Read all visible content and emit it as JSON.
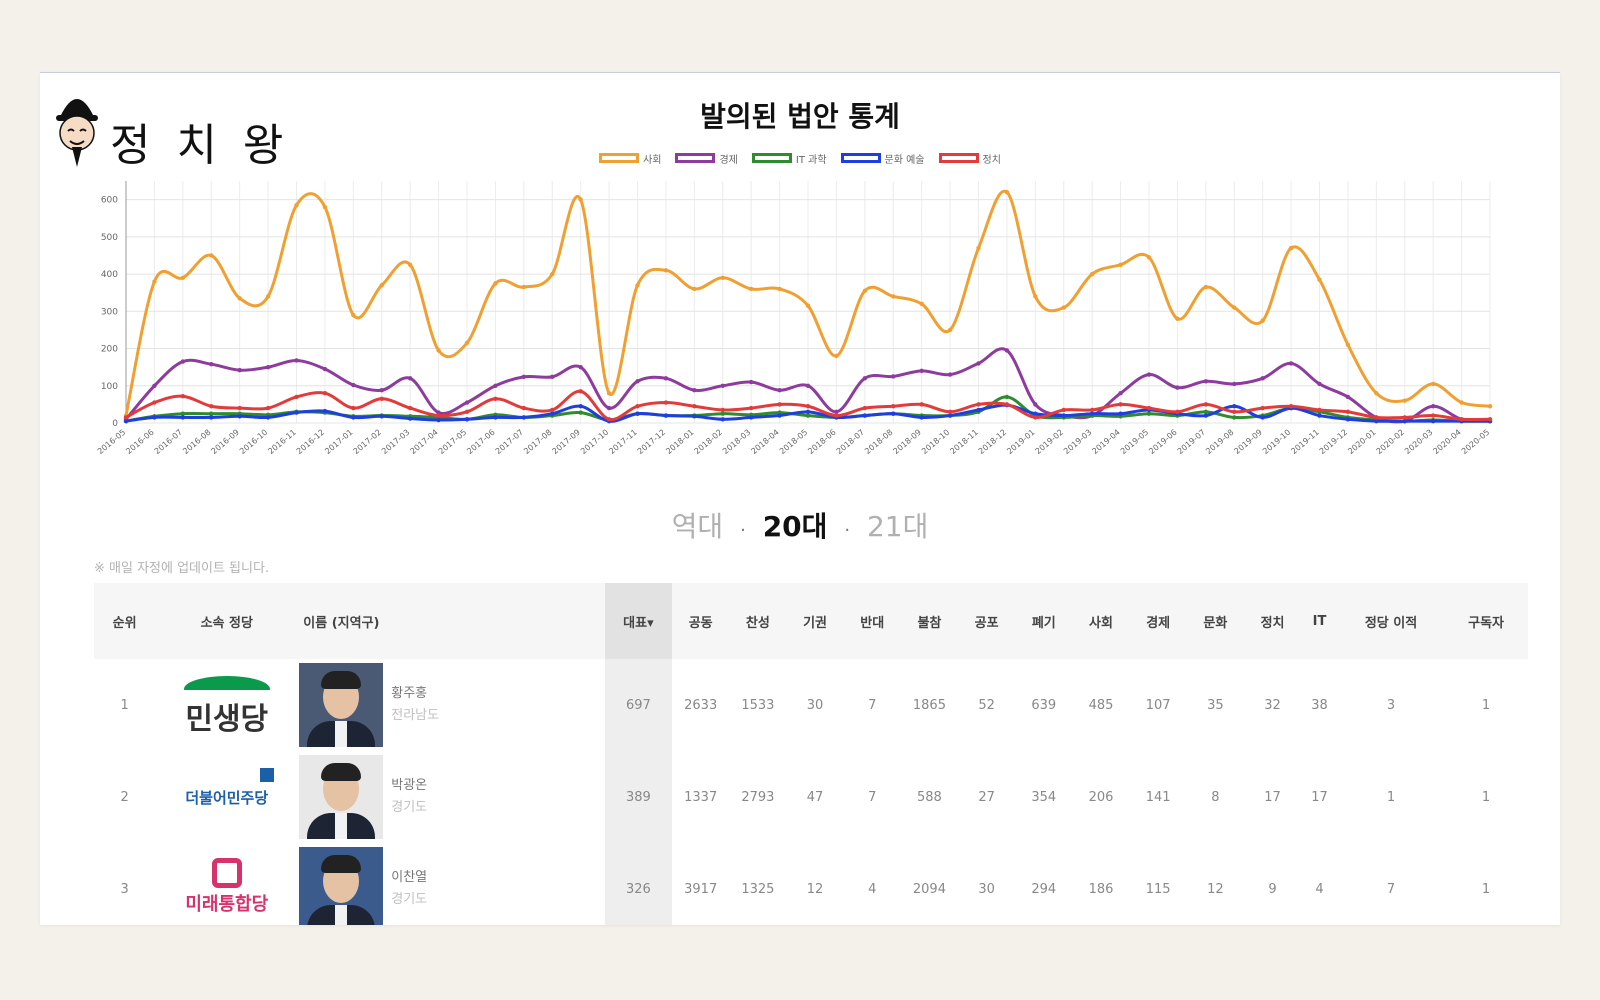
{
  "brand": {
    "logo_text": "정 치 왕"
  },
  "chart_data": {
    "type": "line",
    "title": "발의된 법안 통계",
    "x": [
      "2016-05",
      "2016-06",
      "2016-07",
      "2016-08",
      "2016-09",
      "2016-10",
      "2016-11",
      "2016-12",
      "2017-01",
      "2017-02",
      "2017-03",
      "2017-04",
      "2017-05",
      "2017-06",
      "2017-07",
      "2017-08",
      "2017-09",
      "2017-10",
      "2017-11",
      "2017-12",
      "2018-01",
      "2018-02",
      "2018-03",
      "2018-04",
      "2018-05",
      "2018-06",
      "2018-07",
      "2018-08",
      "2018-09",
      "2018-10",
      "2018-11",
      "2018-12",
      "2019-01",
      "2019-02",
      "2019-03",
      "2019-04",
      "2019-05",
      "2019-06",
      "2019-07",
      "2019-08",
      "2019-09",
      "2019-10",
      "2019-11",
      "2019-12",
      "2020-01",
      "2020-02",
      "2020-03",
      "2020-04",
      "2020-05"
    ],
    "ylim": [
      0,
      650
    ],
    "yticks": [
      0,
      100,
      200,
      300,
      400,
      500,
      600
    ],
    "grid": true,
    "legend_position": "top-center",
    "series": [
      {
        "name": "사회",
        "color": "#f0a030",
        "values": [
          20,
          380,
          390,
          450,
          335,
          340,
          585,
          580,
          290,
          370,
          425,
          195,
          215,
          375,
          365,
          400,
          600,
          80,
          370,
          410,
          360,
          390,
          360,
          360,
          315,
          180,
          355,
          340,
          320,
          250,
          470,
          620,
          340,
          310,
          400,
          425,
          445,
          280,
          365,
          310,
          275,
          470,
          385,
          210,
          80,
          60,
          105,
          55,
          45
        ]
      },
      {
        "name": "경제",
        "color": "#8e3b9e",
        "values": [
          10,
          100,
          165,
          158,
          142,
          150,
          168,
          145,
          102,
          88,
          120,
          28,
          55,
          100,
          124,
          124,
          150,
          40,
          112,
          120,
          88,
          100,
          110,
          88,
          100,
          30,
          120,
          125,
          140,
          130,
          160,
          195,
          50,
          20,
          20,
          80,
          130,
          95,
          112,
          105,
          120,
          160,
          105,
          70,
          15,
          5,
          45,
          10,
          5
        ]
      },
      {
        "name": "IT 과학",
        "color": "#2e8b2e",
        "values": [
          5,
          18,
          25,
          25,
          25,
          22,
          30,
          28,
          18,
          20,
          18,
          15,
          10,
          22,
          15,
          20,
          28,
          8,
          25,
          20,
          20,
          25,
          22,
          28,
          20,
          15,
          20,
          25,
          20,
          20,
          30,
          70,
          20,
          15,
          20,
          18,
          25,
          20,
          30,
          15,
          20,
          40,
          30,
          15,
          8,
          5,
          8,
          5,
          5
        ]
      },
      {
        "name": "문화 예술",
        "color": "#1f3ee0",
        "values": [
          5,
          15,
          15,
          15,
          18,
          15,
          28,
          32,
          15,
          18,
          12,
          8,
          10,
          15,
          15,
          25,
          45,
          5,
          25,
          20,
          18,
          10,
          15,
          20,
          30,
          15,
          20,
          25,
          15,
          20,
          35,
          48,
          25,
          20,
          25,
          25,
          35,
          25,
          20,
          45,
          15,
          40,
          20,
          10,
          5,
          5,
          5,
          5,
          5
        ]
      },
      {
        "name": "정치",
        "color": "#e23b3b",
        "values": [
          15,
          55,
          72,
          45,
          40,
          40,
          70,
          80,
          40,
          65,
          40,
          20,
          30,
          65,
          40,
          35,
          85,
          10,
          45,
          55,
          45,
          35,
          40,
          50,
          45,
          20,
          40,
          45,
          50,
          30,
          50,
          50,
          15,
          35,
          35,
          50,
          40,
          30,
          50,
          30,
          40,
          45,
          35,
          30,
          15,
          15,
          20,
          10,
          10
        ]
      }
    ]
  },
  "generations": {
    "all": "역대",
    "sep": "·",
    "current": "20대",
    "next": "21대"
  },
  "note": "※ 매일 자정에 업데이트 됩니다.",
  "table": {
    "headers": {
      "rank": "순위",
      "party": "소속 정당",
      "name": "이름 (지역구)",
      "lead": "대표",
      "joint": "공동",
      "support": "찬성",
      "abstain": "기권",
      "oppose": "반대",
      "absent": "불참",
      "promulgate": "공포",
      "discard": "폐기",
      "society": "사회",
      "economy": "경제",
      "culture": "문화",
      "politics": "정치",
      "it": "IT",
      "party_move": "정당 이적",
      "subscribers": "구독자"
    },
    "sort_indicator": "▾",
    "rows": [
      {
        "rank": "1",
        "party": "민생당",
        "name": "황주홍",
        "region": "전라남도",
        "lead": "697",
        "joint": "2633",
        "support": "1533",
        "abstain": "30",
        "oppose": "7",
        "absent": "1865",
        "promulgate": "52",
        "discard": "639",
        "society": "485",
        "economy": "107",
        "culture": "35",
        "politics": "32",
        "it": "38",
        "party_move": "3",
        "subscribers": "1"
      },
      {
        "rank": "2",
        "party": "더불어민주당",
        "name": "박광온",
        "region": "경기도",
        "lead": "389",
        "joint": "1337",
        "support": "2793",
        "abstain": "47",
        "oppose": "7",
        "absent": "588",
        "promulgate": "27",
        "discard": "354",
        "society": "206",
        "economy": "141",
        "culture": "8",
        "politics": "17",
        "it": "17",
        "party_move": "1",
        "subscribers": "1"
      },
      {
        "rank": "3",
        "party": "미래통합당",
        "name": "이찬열",
        "region": "경기도",
        "lead": "326",
        "joint": "3917",
        "support": "1325",
        "abstain": "12",
        "oppose": "4",
        "absent": "2094",
        "promulgate": "30",
        "discard": "294",
        "society": "186",
        "economy": "115",
        "culture": "12",
        "politics": "9",
        "it": "4",
        "party_move": "7",
        "subscribers": "1"
      }
    ]
  }
}
